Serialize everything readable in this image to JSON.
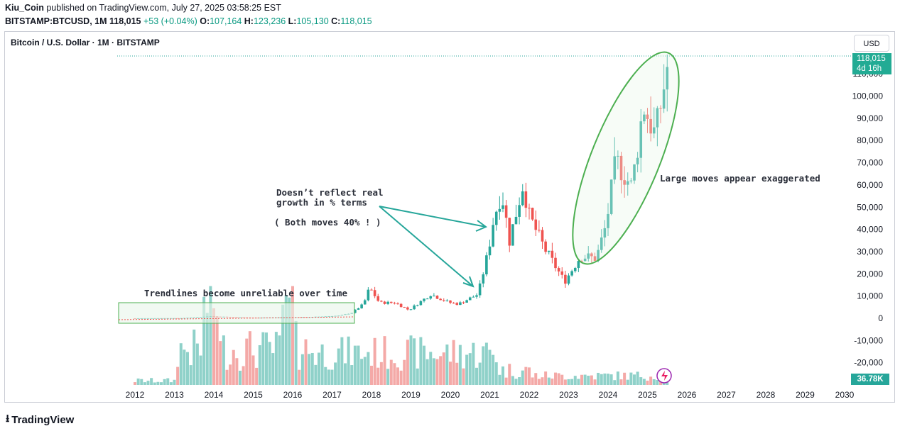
{
  "header": {
    "author": "Kiu_Coin",
    "published": "published on TradingView.com, July 27, 2025 03:58:25 EST",
    "symbol": "BITSTAMP:BTCUSD, 1M",
    "last": "118,015",
    "change": "+53 (+0.04%)",
    "o_label": "O:",
    "o": "107,164",
    "h_label": "H:",
    "h": "123,236",
    "l_label": "L:",
    "l": "105,130",
    "c_label": "C:",
    "c": "118,015"
  },
  "chart_title": "Bitcoin / U.S. Dollar · 1M · BITSTAMP",
  "currency_button": "USD",
  "price_tag": {
    "price": "118,015",
    "countdown": "4d 16h"
  },
  "volume_tag": "36.78K",
  "brand": "TradingView",
  "annotations": {
    "trendlines": "Trendlines become unreliable over time",
    "growth_line1": "Doesn’t reflect real",
    "growth_line2": "growth in % terms",
    "both_moves": "( Both moves 40% ! )",
    "large_moves": "Large moves appear exaggerated"
  },
  "colors": {
    "up": "#26a69a",
    "down": "#ef5350",
    "accent_green": "#4caf50",
    "arrow": "#26a69a"
  },
  "chart_data": {
    "type": "candlestick",
    "x_ticks": [
      "2012",
      "2013",
      "2014",
      "2015",
      "2016",
      "2017",
      "2018",
      "2019",
      "2020",
      "2021",
      "2022",
      "2023",
      "2024",
      "2025",
      "2026",
      "2027",
      "2028",
      "2029",
      "2030"
    ],
    "y_ticks": [
      "-20,000",
      "-10,000",
      "0",
      "10,000",
      "20,000",
      "30,000",
      "40,000",
      "50,000",
      "60,000",
      "70,000",
      "80,000",
      "90,000",
      "100,000",
      "110,000"
    ],
    "y_values": [
      -20000,
      -10000,
      0,
      10000,
      20000,
      30000,
      40000,
      50000,
      60000,
      70000,
      80000,
      90000,
      100000,
      110000
    ],
    "ylim": [
      -26000,
      122000
    ],
    "last_price": 118015,
    "series": [
      {
        "year": 2017.2,
        "close": 1200
      },
      {
        "year": 2017.5,
        "close": 2500
      },
      {
        "year": 2017.8,
        "close": 6400
      },
      {
        "year": 2017.95,
        "close": 13800
      },
      {
        "year": 2018.2,
        "close": 7000
      },
      {
        "year": 2018.6,
        "close": 7000
      },
      {
        "year": 2018.95,
        "close": 3700
      },
      {
        "year": 2019.5,
        "close": 10800
      },
      {
        "year": 2019.95,
        "close": 7200
      },
      {
        "year": 2020.2,
        "close": 6400
      },
      {
        "year": 2020.7,
        "close": 10800
      },
      {
        "year": 2020.95,
        "close": 29000
      },
      {
        "year": 2021.1,
        "close": 45000
      },
      {
        "year": 2021.3,
        "close": 57000
      },
      {
        "year": 2021.5,
        "close": 35000
      },
      {
        "year": 2021.85,
        "close": 61000
      },
      {
        "year": 2022.0,
        "close": 46000
      },
      {
        "year": 2022.4,
        "close": 31000
      },
      {
        "year": 2022.9,
        "close": 16500
      },
      {
        "year": 2023.3,
        "close": 28000
      },
      {
        "year": 2023.7,
        "close": 27000
      },
      {
        "year": 2023.95,
        "close": 42000
      },
      {
        "year": 2024.2,
        "close": 71000
      },
      {
        "year": 2024.6,
        "close": 59000
      },
      {
        "year": 2024.9,
        "close": 96000
      },
      {
        "year": 2025.2,
        "close": 82000
      },
      {
        "year": 2025.55,
        "close": 118015
      }
    ]
  }
}
